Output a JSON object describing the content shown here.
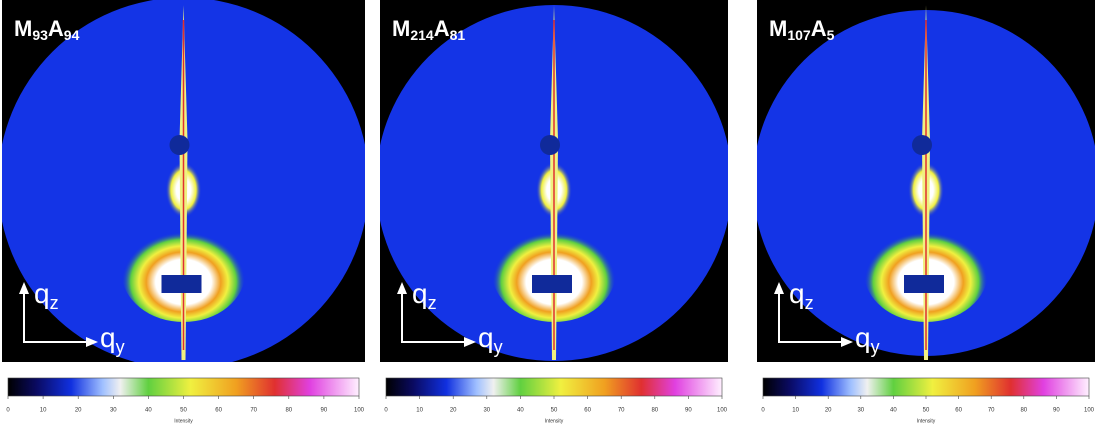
{
  "panels": [
    {
      "label": {
        "m": "M",
        "m_sub": "93",
        "a": "A",
        "a_sub": "94"
      }
    },
    {
      "label": {
        "m": "M",
        "m_sub": "214",
        "a": "A",
        "a_sub": "81"
      }
    },
    {
      "label": {
        "m": "M",
        "m_sub": "107",
        "a": "A",
        "a_sub": "5"
      }
    }
  ],
  "axis_labels": {
    "q": "q",
    "z": "z",
    "y": "y"
  },
  "colorbar": {
    "range": [
      0,
      100
    ],
    "ticks": [
      0,
      10,
      20,
      30,
      40,
      50,
      60,
      70,
      80,
      90,
      100
    ],
    "label": "Intensity"
  }
}
